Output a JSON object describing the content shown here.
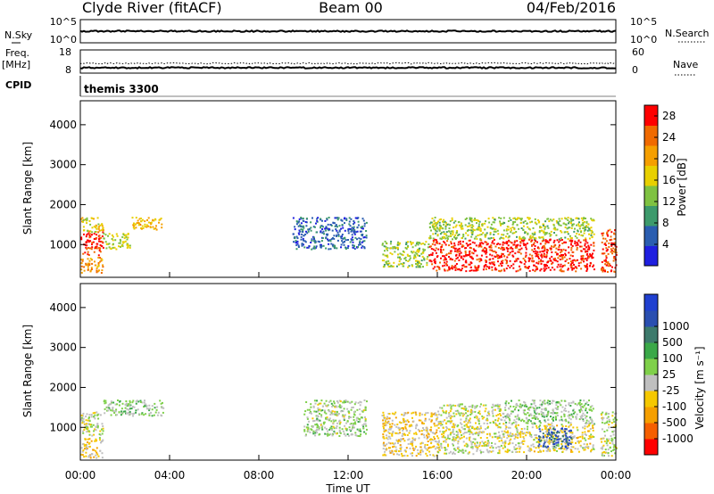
{
  "header": {
    "station": "Clyde River (fitACF)",
    "beam": "Beam 00",
    "date": "04/Feb/2016"
  },
  "scan": {
    "left_label": "N.Sky",
    "right_label": "N.Search",
    "ticks_left": [
      "10^5",
      "10^0"
    ],
    "ticks_right": [
      "10^5",
      "10^0"
    ]
  },
  "freq": {
    "left_label_1": "Freq.",
    "left_label_2": "[MHz]",
    "ticks_left": [
      "18",
      "8"
    ],
    "right_label": "Nave",
    "ticks_right": [
      "60",
      "0"
    ]
  },
  "cpid": {
    "label": "CPID",
    "text": "themis 3300"
  },
  "colors": {
    "power": [
      "#1f1fe0",
      "#2a5db0",
      "#3d9a6c",
      "#7fc242",
      "#e8d000",
      "#f59f00",
      "#f06a00",
      "#ff0000"
    ],
    "velocity": [
      "#ff0000",
      "#f55f00",
      "#f59f00",
      "#f5c800",
      "#bfbfbf",
      "#7fd04a",
      "#3aa848",
      "#3d7a6c",
      "#2a4fb0",
      "#2040d0"
    ]
  },
  "chart_data": [
    {
      "type": "heatmap",
      "name": "power",
      "ylabel": "Slant Range [km]",
      "ylim": [
        180,
        4600
      ],
      "yticks": [
        "1000",
        "2000",
        "3000",
        "4000"
      ],
      "xlim": [
        0,
        24
      ],
      "colorbar": {
        "label": "Power [dB]",
        "ticks": [
          "4",
          "8",
          "12",
          "16",
          "20",
          "24",
          "28"
        ],
        "range": [
          0,
          30
        ]
      },
      "regions": [
        {
          "t0": 0.0,
          "t1": 1.0,
          "r0": 750,
          "r1": 1350,
          "v": 27
        },
        {
          "t0": 0.0,
          "t1": 1.0,
          "r0": 1300,
          "r1": 1700,
          "v": 17
        },
        {
          "t0": 0.0,
          "t1": 1.0,
          "r0": 300,
          "r1": 700,
          "v": 22
        },
        {
          "t0": 1.0,
          "t1": 2.2,
          "r0": 900,
          "r1": 1300,
          "v": 15
        },
        {
          "t0": 2.3,
          "t1": 3.7,
          "r0": 1380,
          "r1": 1700,
          "v": 19
        },
        {
          "t0": 9.5,
          "t1": 12.8,
          "r0": 900,
          "r1": 1700,
          "v": 6
        },
        {
          "t0": 13.5,
          "t1": 15.6,
          "r0": 450,
          "r1": 1100,
          "v": 14
        },
        {
          "t0": 15.6,
          "t1": 23.0,
          "r0": 350,
          "r1": 1150,
          "v": 28
        },
        {
          "t0": 15.6,
          "t1": 23.0,
          "r0": 1150,
          "r1": 1700,
          "v": 14
        },
        {
          "t0": 23.3,
          "t1": 24.0,
          "r0": 300,
          "r1": 1400,
          "v": 26
        }
      ]
    },
    {
      "type": "heatmap",
      "name": "velocity",
      "ylabel": "Slant Range [km]",
      "ylim": [
        180,
        4600
      ],
      "yticks": [
        "1000",
        "2000",
        "3000",
        "4000"
      ],
      "xlim": [
        0,
        24
      ],
      "xticks": [
        "00:00",
        "04:00",
        "08:00",
        "12:00",
        "16:00",
        "20:00",
        "00:00"
      ],
      "xlabel": "Time UT",
      "colorbar": {
        "label": "Velocity [m s⁻¹]",
        "ticks": [
          "-1000",
          "-500",
          "-100",
          "-25",
          "25",
          "100",
          "500",
          "1000"
        ],
        "range": [
          -1200,
          1200
        ]
      },
      "regions": [
        {
          "t0": 0.0,
          "t1": 1.0,
          "r0": 750,
          "r1": 1400,
          "v": -80
        },
        {
          "t0": 0.0,
          "t1": 1.0,
          "r0": 250,
          "r1": 750,
          "v": -300
        },
        {
          "t0": 1.0,
          "t1": 3.7,
          "r0": 1300,
          "r1": 1700,
          "v": 60
        },
        {
          "t0": 10.0,
          "t1": 12.8,
          "r0": 800,
          "r1": 1700,
          "v": 0
        },
        {
          "t0": 13.5,
          "t1": 16.0,
          "r0": 300,
          "r1": 1400,
          "v": -300
        },
        {
          "t0": 16.0,
          "t1": 19.0,
          "r0": 350,
          "r1": 1600,
          "v": -150
        },
        {
          "t0": 19.0,
          "t1": 23.0,
          "r0": 1100,
          "r1": 1700,
          "v": 60
        },
        {
          "t0": 19.0,
          "t1": 23.0,
          "r0": 400,
          "r1": 1100,
          "v": -200
        },
        {
          "t0": 20.5,
          "t1": 22.0,
          "r0": 500,
          "r1": 1000,
          "v": 800
        },
        {
          "t0": 23.3,
          "t1": 24.0,
          "r0": 300,
          "r1": 1400,
          "v": -100
        }
      ]
    }
  ]
}
